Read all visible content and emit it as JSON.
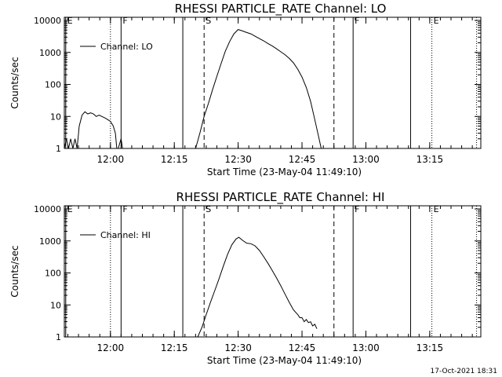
{
  "footer": {
    "timestamp": "17-Oct-2021 18:31"
  },
  "chart_data": [
    {
      "type": "line",
      "title": "RHESSI PARTICLE_RATE Channel: LO",
      "xlabel": "Start Time (23-May-04 11:49:10)",
      "ylabel": "Counts/sec",
      "y_scale": "log",
      "ylim": [
        1,
        10000
      ],
      "xlim": [
        "11:49:10",
        "13:27:00"
      ],
      "x_ticks": [
        "12:00",
        "12:15",
        "12:30",
        "12:45",
        "13:00",
        "13:15"
      ],
      "y_ticks": [
        "1",
        "10",
        "100",
        "1000",
        "10000"
      ],
      "grid": false,
      "legend": {
        "position": "top-left",
        "entries": [
          "Channel: LO"
        ]
      },
      "markers": [
        {
          "time": "11:49:30",
          "style": "solid",
          "label": "E"
        },
        {
          "time": "12:00:00",
          "style": "dotted",
          "label": ""
        },
        {
          "time": "12:02:30",
          "style": "solid",
          "label": "F"
        },
        {
          "time": "12:17:00",
          "style": "solid",
          "label": ""
        },
        {
          "time": "12:22:00",
          "style": "dashed",
          "label": "S"
        },
        {
          "time": "12:52:30",
          "style": "dashed",
          "label": ""
        },
        {
          "time": "12:57:00",
          "style": "solid",
          "label": "F"
        },
        {
          "time": "13:10:30",
          "style": "solid",
          "label": ""
        },
        {
          "time": "13:15:30",
          "style": "dotted",
          "label": "E"
        },
        {
          "time": "13:26:00",
          "style": "dotted",
          "label": ""
        }
      ],
      "series": [
        {
          "name": "Channel: LO",
          "points": [
            [
              "11:49:10",
              1
            ],
            [
              "11:49:40",
              2
            ],
            [
              "11:50:10",
              1
            ],
            [
              "11:50:40",
              2
            ],
            [
              "11:51:10",
              1
            ],
            [
              "11:51:40",
              2
            ],
            [
              "11:52:10",
              1
            ],
            [
              "11:52:40",
              5
            ],
            [
              "11:53:20",
              11
            ],
            [
              "11:54:00",
              14
            ],
            [
              "11:54:40",
              12
            ],
            [
              "11:55:20",
              13
            ],
            [
              "11:56:00",
              12
            ],
            [
              "11:56:40",
              10
            ],
            [
              "11:57:20",
              11
            ],
            [
              "11:58:00",
              10
            ],
            [
              "11:58:40",
              9
            ],
            [
              "11:59:20",
              8
            ],
            [
              "12:00:00",
              7
            ],
            [
              "12:00:40",
              5
            ],
            [
              "12:01:10",
              3
            ],
            [
              "12:01:30",
              1
            ],
            [
              "12:01:50",
              1
            ],
            [
              "12:02:30",
              2
            ],
            [
              "12:02:50",
              1
            ],
            [
              "12:20:00",
              1
            ],
            [
              "12:21:00",
              3
            ],
            [
              "12:22:00",
              10
            ],
            [
              "12:23:00",
              25
            ],
            [
              "12:24:00",
              70
            ],
            [
              "12:25:00",
              180
            ],
            [
              "12:26:00",
              450
            ],
            [
              "12:27:00",
              1100
            ],
            [
              "12:28:00",
              2200
            ],
            [
              "12:29:00",
              3800
            ],
            [
              "12:30:00",
              5200
            ],
            [
              "12:31:00",
              4700
            ],
            [
              "12:32:00",
              4200
            ],
            [
              "12:33:00",
              3800
            ],
            [
              "12:34:00",
              3200
            ],
            [
              "12:35:00",
              2700
            ],
            [
              "12:36:00",
              2300
            ],
            [
              "12:37:00",
              1900
            ],
            [
              "12:38:00",
              1600
            ],
            [
              "12:39:00",
              1300
            ],
            [
              "12:40:00",
              1050
            ],
            [
              "12:41:00",
              850
            ],
            [
              "12:42:00",
              650
            ],
            [
              "12:43:00",
              470
            ],
            [
              "12:44:00",
              300
            ],
            [
              "12:45:00",
              170
            ],
            [
              "12:46:00",
              80
            ],
            [
              "12:47:00",
              30
            ],
            [
              "12:48:00",
              8
            ],
            [
              "12:49:00",
              2
            ],
            [
              "12:49:30",
              1
            ]
          ]
        }
      ]
    },
    {
      "type": "line",
      "title": "RHESSI PARTICLE_RATE Channel: HI",
      "xlabel": "Start Time (23-May-04 11:49:10)",
      "ylabel": "Counts/sec",
      "y_scale": "log",
      "ylim": [
        1,
        10000
      ],
      "xlim": [
        "11:49:10",
        "13:27:00"
      ],
      "x_ticks": [
        "12:00",
        "12:15",
        "12:30",
        "12:45",
        "13:00",
        "13:15"
      ],
      "y_ticks": [
        "1",
        "10",
        "100",
        "1000",
        "10000"
      ],
      "grid": false,
      "legend": {
        "position": "top-left",
        "entries": [
          "Channel: HI"
        ]
      },
      "markers": [
        {
          "time": "11:49:30",
          "style": "solid",
          "label": "E"
        },
        {
          "time": "12:00:00",
          "style": "dotted",
          "label": ""
        },
        {
          "time": "12:02:30",
          "style": "solid",
          "label": "F"
        },
        {
          "time": "12:17:00",
          "style": "solid",
          "label": ""
        },
        {
          "time": "12:22:00",
          "style": "dashed",
          "label": "S"
        },
        {
          "time": "12:52:30",
          "style": "dashed",
          "label": ""
        },
        {
          "time": "12:57:00",
          "style": "solid",
          "label": "F"
        },
        {
          "time": "13:10:30",
          "style": "solid",
          "label": ""
        },
        {
          "time": "13:15:30",
          "style": "dotted",
          "label": "E"
        },
        {
          "time": "13:26:00",
          "style": "dotted",
          "label": ""
        }
      ],
      "series": [
        {
          "name": "Channel: HI",
          "points": [
            [
              "12:20:30",
              1
            ],
            [
              "12:21:30",
              2
            ],
            [
              "12:22:30",
              5
            ],
            [
              "12:23:30",
              12
            ],
            [
              "12:24:30",
              28
            ],
            [
              "12:25:30",
              65
            ],
            [
              "12:26:30",
              160
            ],
            [
              "12:27:30",
              380
            ],
            [
              "12:28:30",
              750
            ],
            [
              "12:29:30",
              1150
            ],
            [
              "12:30:10",
              1300
            ],
            [
              "12:31:00",
              1050
            ],
            [
              "12:32:00",
              850
            ],
            [
              "12:33:00",
              820
            ],
            [
              "12:34:00",
              700
            ],
            [
              "12:35:00",
              500
            ],
            [
              "12:36:00",
              320
            ],
            [
              "12:37:00",
              200
            ],
            [
              "12:38:00",
              120
            ],
            [
              "12:39:00",
              70
            ],
            [
              "12:40:00",
              40
            ],
            [
              "12:41:00",
              22
            ],
            [
              "12:42:00",
              12
            ],
            [
              "12:43:00",
              7
            ],
            [
              "12:44:00",
              5
            ],
            [
              "12:44:30",
              4
            ],
            [
              "12:45:00",
              4
            ],
            [
              "12:45:30",
              3
            ],
            [
              "12:46:00",
              3.5
            ],
            [
              "12:46:30",
              2.8
            ],
            [
              "12:47:00",
              3
            ],
            [
              "12:47:30",
              2.2
            ],
            [
              "12:48:00",
              2.5
            ],
            [
              "12:48:30",
              1.8
            ]
          ]
        }
      ]
    }
  ]
}
